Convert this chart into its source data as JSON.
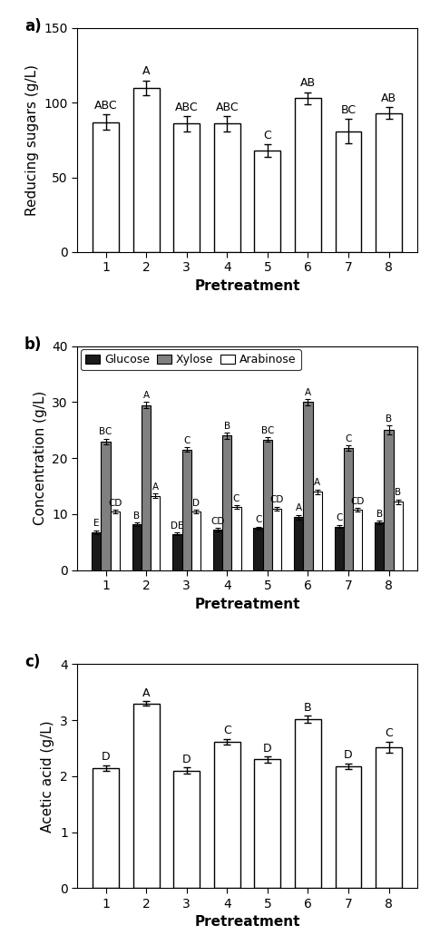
{
  "panel_a": {
    "values": [
      87,
      110,
      86,
      86,
      68,
      103,
      81,
      93
    ],
    "errors": [
      5,
      5,
      5,
      5,
      4,
      4,
      8,
      4
    ],
    "labels": [
      "ABC",
      "A",
      "ABC",
      "ABC",
      "C",
      "AB",
      "BC",
      "AB"
    ],
    "ylabel": "Reducing sugars (g/L)",
    "xlabel": "Pretreatment",
    "ylim": [
      0,
      150
    ],
    "yticks": [
      0,
      50,
      100,
      150
    ]
  },
  "panel_b": {
    "glucose": [
      6.8,
      8.2,
      6.5,
      7.2,
      7.5,
      9.5,
      7.8,
      8.5
    ],
    "glucose_err": [
      0.3,
      0.3,
      0.2,
      0.3,
      0.3,
      0.4,
      0.3,
      0.3
    ],
    "glucose_labels": [
      "E",
      "B",
      "DE",
      "CD",
      "C",
      "A",
      "C",
      "B"
    ],
    "xylose": [
      23.0,
      29.5,
      21.5,
      24.0,
      23.3,
      30.0,
      21.8,
      25.0
    ],
    "xylose_err": [
      0.5,
      0.5,
      0.4,
      0.5,
      0.4,
      0.5,
      0.5,
      0.8
    ],
    "xylose_labels": [
      "BC",
      "A",
      "C",
      "B",
      "BC",
      "A",
      "C",
      "B"
    ],
    "arabinose": [
      10.5,
      13.3,
      10.5,
      11.3,
      11.0,
      14.0,
      10.8,
      12.2
    ],
    "arabinose_err": [
      0.3,
      0.4,
      0.3,
      0.3,
      0.3,
      0.4,
      0.3,
      0.4
    ],
    "arabinose_labels": [
      "CD",
      "A",
      "D",
      "C",
      "CD",
      "A",
      "CD",
      "B"
    ],
    "ylabel": "Concentration (g/L)",
    "xlabel": "Pretreatment",
    "ylim": [
      0,
      40
    ],
    "yticks": [
      0,
      10,
      20,
      30,
      40
    ]
  },
  "panel_c": {
    "values": [
      2.15,
      3.3,
      2.1,
      2.62,
      2.3,
      3.02,
      2.18,
      2.52
    ],
    "errors": [
      0.05,
      0.04,
      0.06,
      0.05,
      0.05,
      0.06,
      0.05,
      0.1
    ],
    "labels": [
      "D",
      "A",
      "D",
      "C",
      "D",
      "B",
      "D",
      "C"
    ],
    "ylabel": "Acetic acid (g/L)",
    "xlabel": "Pretreatment",
    "ylim": [
      0,
      4
    ],
    "yticks": [
      0,
      1,
      2,
      3,
      4
    ]
  },
  "pretreatments": [
    "1",
    "2",
    "3",
    "4",
    "5",
    "6",
    "7",
    "8"
  ],
  "bar_color_white": "#ffffff",
  "bar_color_black": "#1a1a1a",
  "bar_color_gray": "#808080",
  "bar_edgecolor": "#000000",
  "panel_labels": [
    "a)",
    "b)",
    "c)"
  ],
  "label_fontsize": 12,
  "tick_fontsize": 10,
  "axis_fontsize": 11,
  "sig_fontsize": 9
}
